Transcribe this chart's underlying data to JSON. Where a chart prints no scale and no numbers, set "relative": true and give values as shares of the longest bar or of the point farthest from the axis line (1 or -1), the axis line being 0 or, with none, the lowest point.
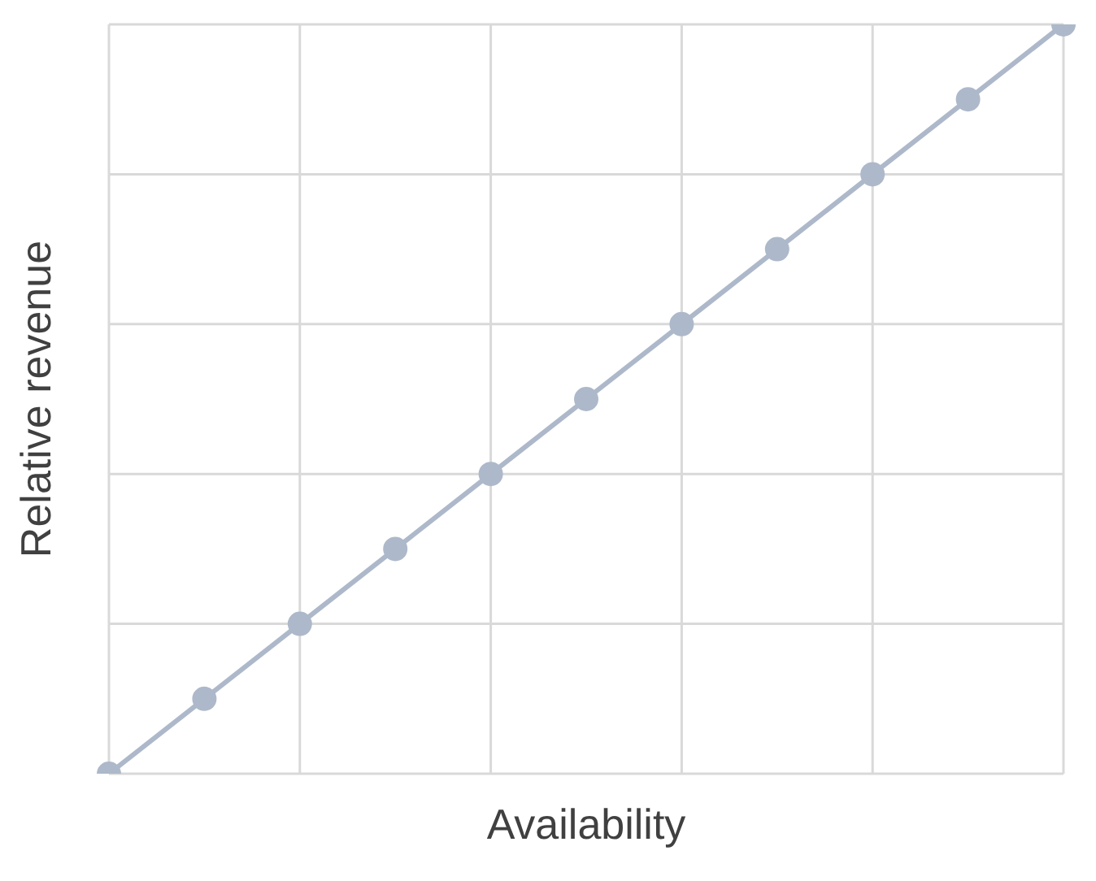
{
  "chart_data": {
    "type": "line",
    "xlabel": "Availability",
    "ylabel": "Relative revenue",
    "relative": true,
    "grid": true,
    "marker": "circle",
    "line_style": "solid",
    "categories": [
      null,
      null,
      null,
      null,
      null,
      null,
      null,
      null,
      null,
      null,
      null
    ],
    "series": [
      {
        "color": "#adb9ca",
        "values": [
          0,
          0.1,
          0.2,
          0.3,
          0.4,
          0.5,
          0.6,
          0.7,
          0.8,
          0.9,
          1
        ]
      }
    ]
  }
}
